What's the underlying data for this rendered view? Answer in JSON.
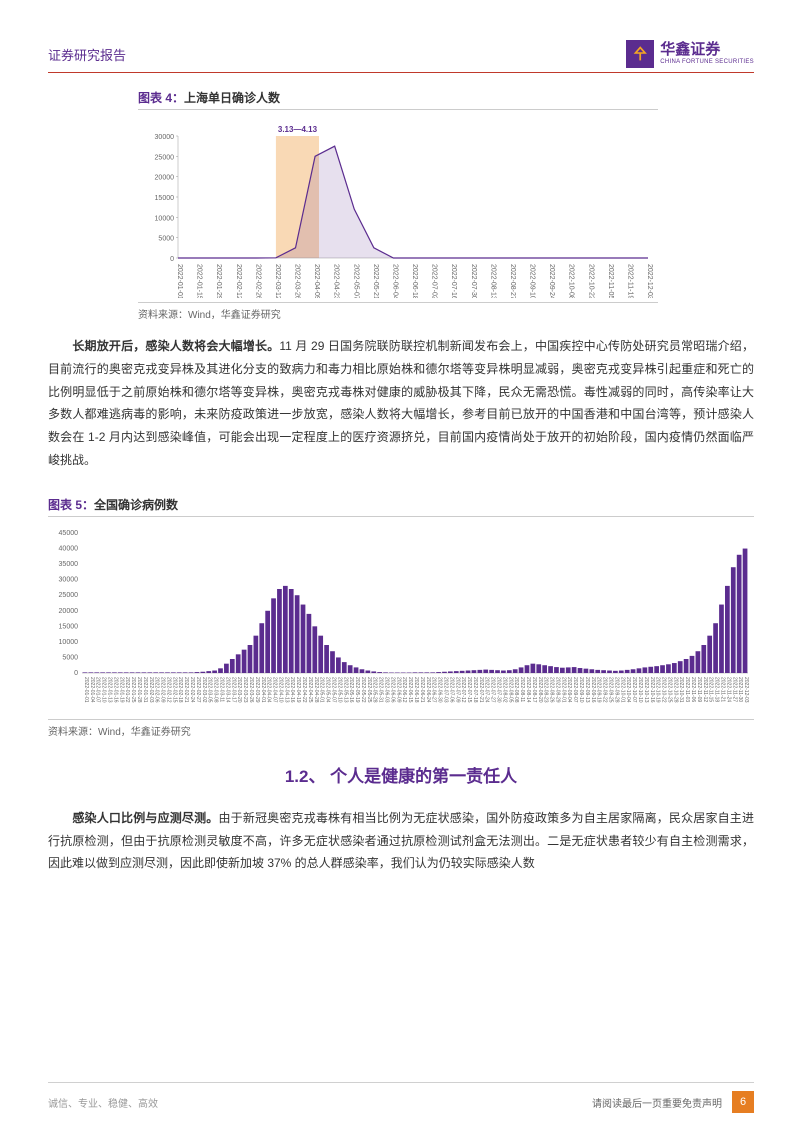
{
  "header": {
    "report_type": "证券研究报告",
    "company_cn": "华鑫证券",
    "company_en": "CHINA FORTUNE SECURITIES",
    "logo_icon": "㐃"
  },
  "chart1": {
    "title_prefix": "图表 4：",
    "title_text": "上海单日确诊人数",
    "source": "资料来源：Wind，华鑫证券研究",
    "highlight_label": "3.13—4.13",
    "type": "area",
    "line_color": "#5b2c8f",
    "fill_color": "#5b2c8f",
    "highlight_color": "#f9d9b5",
    "background_color": "#ffffff",
    "ylim": [
      0,
      30000
    ],
    "ytick_step": 5000,
    "yticks": [
      0,
      5000,
      10000,
      15000,
      20000,
      25000,
      30000
    ],
    "title_fontsize": 12,
    "axis_fontsize": 7,
    "x_labels": [
      "2022-01-01",
      "2022-01-15",
      "2022-01-29",
      "2022-02-12",
      "2022-02-26",
      "2022-03-12",
      "2022-03-26",
      "2022-04-09",
      "2022-04-23",
      "2022-05-07",
      "2022-05-21",
      "2022-06-04",
      "2022-06-18",
      "2022-07-02",
      "2022-07-16",
      "2022-07-30",
      "2022-08-13",
      "2022-08-27",
      "2022-09-10",
      "2022-09-24",
      "2022-10-08",
      "2022-10-22",
      "2022-11-05",
      "2022-11-19",
      "2022-12-03"
    ],
    "highlight_start_idx": 5,
    "highlight_end_idx": 7.2,
    "values": [
      0,
      0,
      0,
      0,
      0,
      50,
      2500,
      25000,
      27500,
      12000,
      2500,
      0,
      0,
      0,
      0,
      0,
      0,
      0,
      0,
      0,
      0,
      0,
      0,
      0,
      0
    ]
  },
  "paragraph1": {
    "bold_lead": "长期放开后，感染人数将会大幅增长。",
    "text": "11 月 29 日国务院联防联控机制新闻发布会上，中国疾控中心传防处研究员常昭瑞介绍，目前流行的奥密克戎变异株及其进化分支的致病力和毒力相比原始株和德尔塔等变异株明显减弱，奥密克戎变异株引起重症和死亡的比例明显低于之前原始株和德尔塔等变异株，奥密克戎毒株对健康的威胁极其下降，民众无需恐慌。毒性减弱的同时，高传染率让大多数人都难逃病毒的影响，未来防疫政策进一步放宽，感染人数将大幅增长，参考目前已放开的中国香港和中国台湾等，预计感染人数会在 1-2 月内达到感染峰值，可能会出现一定程度上的医疗资源挤兑，目前国内疫情尚处于放开的初始阶段，国内疫情仍然面临严峻挑战。"
  },
  "chart2": {
    "title_prefix": "图表 5：",
    "title_text": "全国确诊病例数",
    "source": "资料来源：Wind，华鑫证券研究",
    "type": "bar",
    "bar_color": "#5b2c8f",
    "background_color": "#ffffff",
    "ylim": [
      0,
      45000
    ],
    "ytick_step": 5000,
    "yticks": [
      0,
      5000,
      10000,
      15000,
      20000,
      25000,
      30000,
      35000,
      40000,
      45000
    ],
    "axis_fontsize": 5,
    "x_labels": [
      "2022-01-01",
      "2022-01-04",
      "2022-01-07",
      "2022-01-10",
      "2022-01-13",
      "2022-01-16",
      "2022-01-19",
      "2022-01-22",
      "2022-01-25",
      "2022-01-28",
      "2022-01-31",
      "2022-02-03",
      "2022-02-06",
      "2022-02-09",
      "2022-02-12",
      "2022-02-15",
      "2022-02-18",
      "2022-02-21",
      "2022-02-24",
      "2022-02-27",
      "2022-03-02",
      "2022-03-05",
      "2022-03-08",
      "2022-03-11",
      "2022-03-14",
      "2022-03-17",
      "2022-03-20",
      "2022-03-23",
      "2022-03-26",
      "2022-03-29",
      "2022-04-01",
      "2022-04-04",
      "2022-04-07",
      "2022-04-10",
      "2022-04-13",
      "2022-04-16",
      "2022-04-19",
      "2022-04-22",
      "2022-04-25",
      "2022-04-28",
      "2022-05-01",
      "2022-05-04",
      "2022-05-07",
      "2022-05-10",
      "2022-05-13",
      "2022-05-16",
      "2022-05-19",
      "2022-05-22",
      "2022-05-25",
      "2022-05-28",
      "2022-05-31",
      "2022-06-03",
      "2022-06-06",
      "2022-06-09",
      "2022-06-12",
      "2022-06-15",
      "2022-06-18",
      "2022-06-21",
      "2022-06-24",
      "2022-06-27",
      "2022-06-30",
      "2022-07-03",
      "2022-07-06",
      "2022-07-09",
      "2022-07-12",
      "2022-07-15",
      "2022-07-18",
      "2022-07-21",
      "2022-07-24",
      "2022-07-27",
      "2022-07-30",
      "2022-08-02",
      "2022-08-05",
      "2022-08-08",
      "2022-08-11",
      "2022-08-14",
      "2022-08-17",
      "2022-08-20",
      "2022-08-23",
      "2022-08-26",
      "2022-08-29",
      "2022-09-01",
      "2022-09-04",
      "2022-09-07",
      "2022-09-10",
      "2022-09-13",
      "2022-09-16",
      "2022-09-19",
      "2022-09-22",
      "2022-09-25",
      "2022-09-28",
      "2022-10-01",
      "2022-10-04",
      "2022-10-07",
      "2022-10-10",
      "2022-10-13",
      "2022-10-16",
      "2022-10-19",
      "2022-10-22",
      "2022-10-25",
      "2022-10-28",
      "2022-10-31",
      "2022-11-03",
      "2022-11-06",
      "2022-11-09",
      "2022-11-12",
      "2022-11-15",
      "2022-11-18",
      "2022-11-21",
      "2022-11-24",
      "2022-11-27",
      "2022-11-30",
      "2022-12-03"
    ],
    "values": [
      200,
      200,
      200,
      200,
      200,
      200,
      200,
      200,
      200,
      200,
      200,
      200,
      200,
      200,
      200,
      200,
      200,
      200,
      200,
      300,
      400,
      600,
      800,
      1500,
      3000,
      4500,
      6000,
      7500,
      9000,
      12000,
      16000,
      20000,
      24000,
      27000,
      28000,
      27000,
      25000,
      22000,
      19000,
      15000,
      12000,
      9000,
      7000,
      5000,
      3500,
      2500,
      1800,
      1200,
      800,
      500,
      300,
      200,
      150,
      150,
      150,
      150,
      200,
      200,
      200,
      200,
      300,
      400,
      500,
      600,
      700,
      800,
      900,
      1000,
      1100,
      1000,
      900,
      800,
      900,
      1200,
      1800,
      2500,
      3000,
      2800,
      2500,
      2200,
      1900,
      1700,
      1800,
      1900,
      1600,
      1400,
      1200,
      1000,
      900,
      800,
      700,
      800,
      1000,
      1200,
      1500,
      1800,
      2000,
      2200,
      2500,
      2800,
      3200,
      3800,
      4500,
      5500,
      7000,
      9000,
      12000,
      16000,
      22000,
      28000,
      34000,
      38000,
      40000
    ]
  },
  "section_heading": "1.2、 个人是健康的第一责任人",
  "paragraph2": {
    "bold_lead": "感染人口比例与应测尽测。",
    "text": "由于新冠奥密克戎毒株有相当比例为无症状感染，国外防疫政策多为自主居家隔离，民众居家自主进行抗原检测，但由于抗原检测灵敏度不高，许多无症状感染者通过抗原检测试剂盒无法测出。二是无症状患者较少有自主检测需求，因此难以做到应测尽测，因此即使新加坡 37% 的总人群感染率，我们认为仍较实际感染人数"
  },
  "footer": {
    "tagline": "诚信、专业、稳健、高效",
    "disclaimer": "请阅读最后一页重要免责声明",
    "page_number": "6"
  }
}
